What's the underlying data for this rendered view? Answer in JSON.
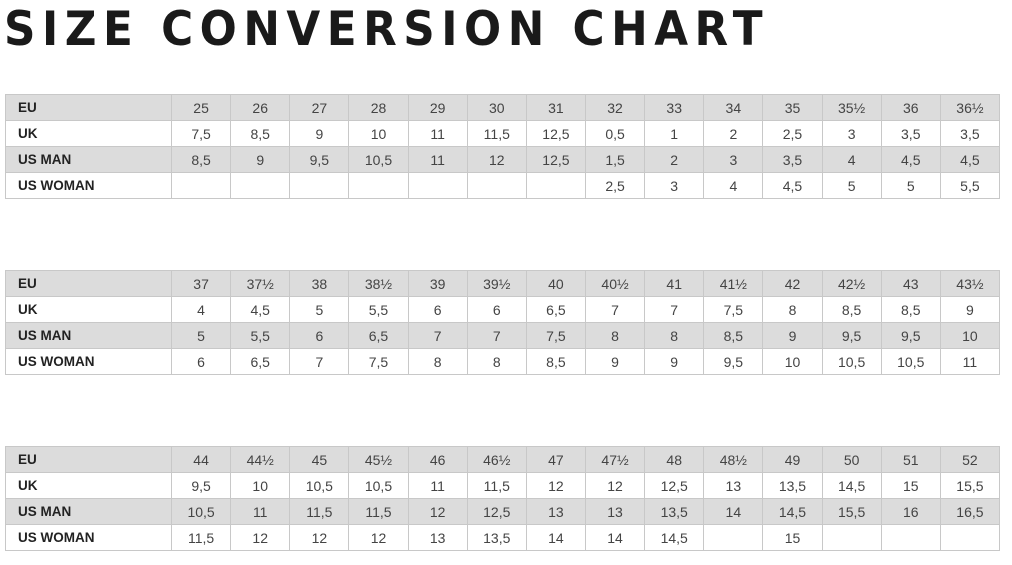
{
  "title": "SIZE CONVERSION CHART",
  "row_labels": [
    "EU",
    "UK",
    "US MAN",
    "US WOMAN"
  ],
  "tables": [
    {
      "EU": [
        "25",
        "26",
        "27",
        "28",
        "29",
        "30",
        "31",
        "32",
        "33",
        "34",
        "35",
        "35½",
        "36",
        "36½"
      ],
      "UK": [
        "7,5",
        "8,5",
        "9",
        "10",
        "11",
        "11,5",
        "12,5",
        "0,5",
        "1",
        "2",
        "2,5",
        "3",
        "3,5",
        "3,5"
      ],
      "US MAN": [
        "8,5",
        "9",
        "9,5",
        "10,5",
        "11",
        "12",
        "12,5",
        "1,5",
        "2",
        "3",
        "3,5",
        "4",
        "4,5",
        "4,5"
      ],
      "US WOMAN": [
        "",
        "",
        "",
        "",
        "",
        "",
        "",
        "2,5",
        "3",
        "4",
        "4,5",
        "5",
        "5",
        "5,5"
      ]
    },
    {
      "EU": [
        "37",
        "37½",
        "38",
        "38½",
        "39",
        "39½",
        "40",
        "40½",
        "41",
        "41½",
        "42",
        "42½",
        "43",
        "43½"
      ],
      "UK": [
        "4",
        "4,5",
        "5",
        "5,5",
        "6",
        "6",
        "6,5",
        "7",
        "7",
        "7,5",
        "8",
        "8,5",
        "8,5",
        "9"
      ],
      "US MAN": [
        "5",
        "5,5",
        "6",
        "6,5",
        "7",
        "7",
        "7,5",
        "8",
        "8",
        "8,5",
        "9",
        "9,5",
        "9,5",
        "10"
      ],
      "US WOMAN": [
        "6",
        "6,5",
        "7",
        "7,5",
        "8",
        "8",
        "8,5",
        "9",
        "9",
        "9,5",
        "10",
        "10,5",
        "10,5",
        "11"
      ]
    },
    {
      "EU": [
        "44",
        "44½",
        "45",
        "45½",
        "46",
        "46½",
        "47",
        "47½",
        "48",
        "48½",
        "49",
        "50",
        "51",
        "52"
      ],
      "UK": [
        "9,5",
        "10",
        "10,5",
        "10,5",
        "11",
        "11,5",
        "12",
        "12",
        "12,5",
        "13",
        "13,5",
        "14,5",
        "15",
        "15,5"
      ],
      "US MAN": [
        "10,5",
        "11",
        "11,5",
        "11,5",
        "12",
        "12,5",
        "13",
        "13",
        "13,5",
        "14",
        "14,5",
        "15,5",
        "16",
        "16,5"
      ],
      "US WOMAN": [
        "11,5",
        "12",
        "12",
        "12",
        "13",
        "13,5",
        "14",
        "14",
        "14,5",
        "",
        "15",
        "",
        "",
        ""
      ]
    }
  ]
}
